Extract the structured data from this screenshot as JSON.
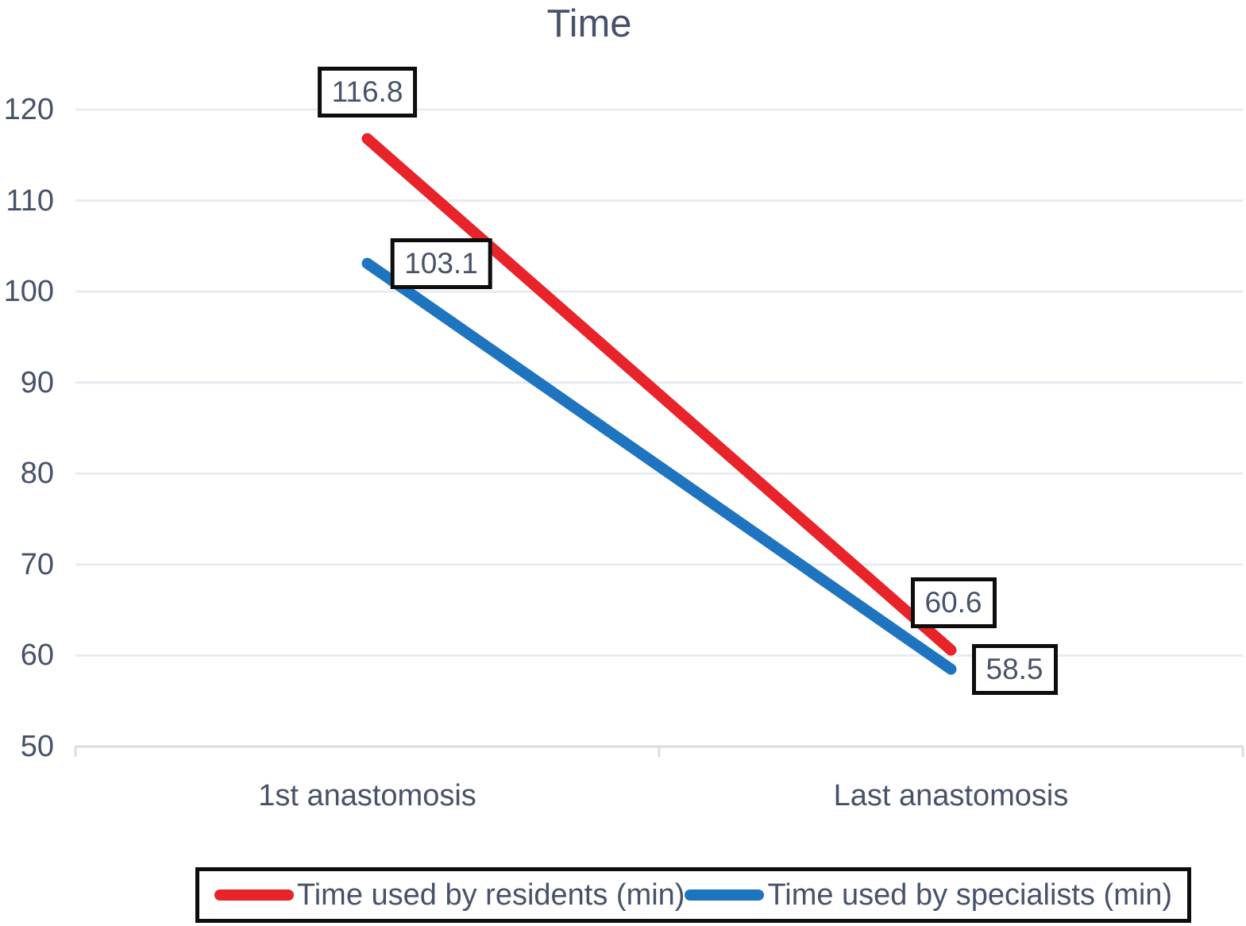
{
  "colors": {
    "residents": "#e82329",
    "specialists": "#1f74c0",
    "gridline": "#e8ebf1",
    "axis_line": "#d8dce4",
    "text": "#47526a",
    "label_box_border": "#0d0d0d"
  },
  "chart_data": {
    "type": "line",
    "title": "Time",
    "categories": [
      "1st anastomosis",
      "Last anastomosis"
    ],
    "series": [
      {
        "name": "Time used by residents (min)",
        "color": "#e82329",
        "values": [
          116.8,
          60.6
        ]
      },
      {
        "name": "Time used by specialists (min)",
        "color": "#1f74c0",
        "values": [
          103.1,
          58.5
        ]
      }
    ],
    "ylim": [
      50,
      120
    ],
    "yticks": [
      50,
      60,
      70,
      80,
      90,
      100,
      110,
      120
    ],
    "xlabel": "",
    "ylabel": "",
    "grid": "horizontal",
    "legend_position": "bottom",
    "data_labels_boxed": true
  }
}
